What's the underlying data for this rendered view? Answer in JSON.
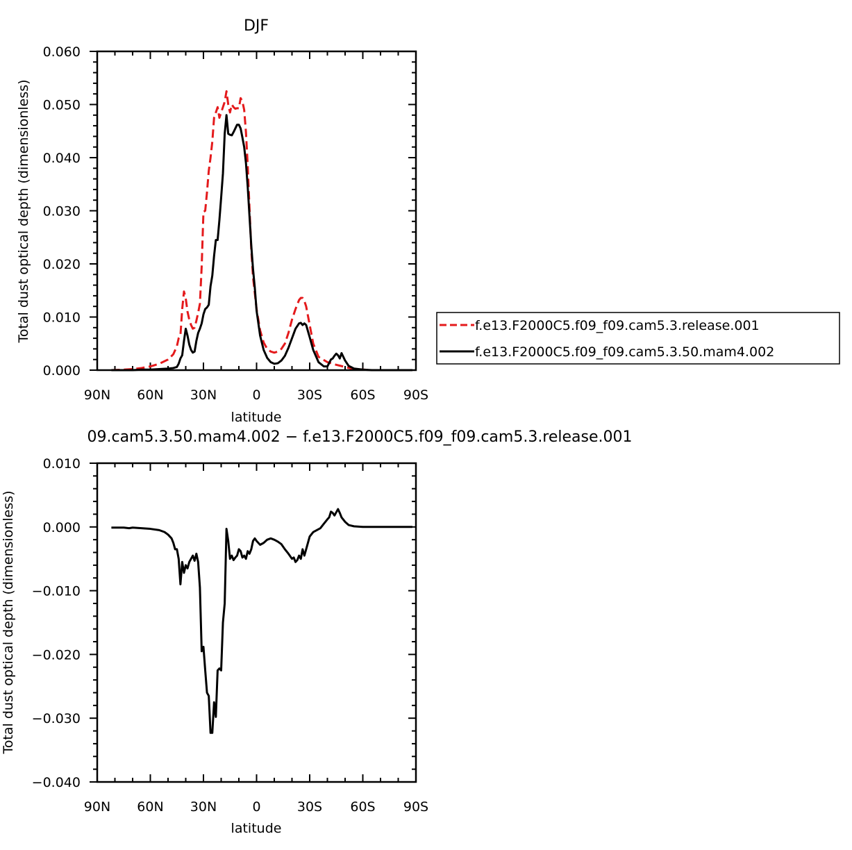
{
  "colors": {
    "series_red": "#e41a1c",
    "series_black": "#000000",
    "axis": "#000000",
    "background": "#ffffff"
  },
  "chart_data": [
    {
      "type": "line",
      "title": "DJF",
      "xlabel": "latitude",
      "ylabel": "Total dust optical depth (dimensionless)",
      "xlim": [
        90,
        -90
      ],
      "ylim": [
        0.0,
        0.06
      ],
      "x_tick_values": [
        90,
        60,
        30,
        0,
        -30,
        -60,
        -90
      ],
      "x_tick_labels": [
        "90N",
        "60N",
        "30N",
        "0",
        "30S",
        "60S",
        "90S"
      ],
      "y_tick_values": [
        0.0,
        0.01,
        0.02,
        0.03,
        0.04,
        0.05,
        0.06
      ],
      "y_tick_labels": [
        "0.000",
        "0.010",
        "0.020",
        "0.030",
        "0.040",
        "0.050",
        "0.060"
      ],
      "grid": false,
      "legend_position": "right",
      "series": [
        {
          "name": "f.e13.F2000C5.f09_f09.cam5.3.release.001",
          "style": "dashed",
          "color": "#e41a1c",
          "x": [
            82,
            75,
            70,
            65,
            60,
            55,
            50,
            47,
            45,
            44,
            43,
            42,
            41,
            40,
            39,
            38,
            37,
            36,
            35,
            34,
            33,
            32,
            31,
            30,
            29,
            28,
            27,
            26,
            25,
            24,
            23,
            22,
            21,
            20,
            19,
            18,
            17,
            16,
            15,
            14,
            13,
            12,
            11,
            10,
            9,
            8,
            7,
            6,
            5,
            4,
            3,
            2,
            1,
            0,
            -2,
            -4,
            -6,
            -8,
            -10,
            -12,
            -14,
            -16,
            -18,
            -20,
            -22,
            -24,
            -25,
            -26,
            -27,
            -28,
            -30,
            -32,
            -35,
            -40,
            -45,
            -50,
            -55,
            -60,
            -65,
            -70,
            -75,
            -80,
            -88
          ],
          "y": [
            0.0,
            0.0001,
            0.0002,
            0.0004,
            0.0007,
            0.0012,
            0.002,
            0.003,
            0.0045,
            0.006,
            0.0065,
            0.0115,
            0.0148,
            0.0135,
            0.011,
            0.0095,
            0.0085,
            0.0078,
            0.008,
            0.0093,
            0.0108,
            0.0125,
            0.0195,
            0.0298,
            0.03,
            0.0335,
            0.0375,
            0.04,
            0.043,
            0.0475,
            0.0485,
            0.0495,
            0.0475,
            0.0485,
            0.0495,
            0.0505,
            0.0525,
            0.05,
            0.0485,
            0.05,
            0.0495,
            0.0492,
            0.0493,
            0.0493,
            0.0512,
            0.0506,
            0.049,
            0.0448,
            0.0385,
            0.0305,
            0.0228,
            0.0175,
            0.0145,
            0.0115,
            0.0075,
            0.0052,
            0.004,
            0.0035,
            0.0033,
            0.0035,
            0.004,
            0.005,
            0.007,
            0.0095,
            0.0115,
            0.0132,
            0.0136,
            0.0136,
            0.013,
            0.012,
            0.0085,
            0.005,
            0.0025,
            0.0015,
            0.001,
            0.0006,
            0.0002,
            0.0001,
            0.0,
            0.0,
            0.0,
            0.0,
            0.0
          ]
        },
        {
          "name": "f.e13.F2000C5.f09_f09.cam5.3.50.mam4.002",
          "style": "solid",
          "color": "#000000",
          "x": [
            82,
            75,
            70,
            65,
            60,
            55,
            50,
            47,
            45,
            44,
            43,
            42,
            41,
            40,
            39,
            38,
            37,
            36,
            35,
            34,
            33,
            32,
            31,
            30,
            29,
            28,
            27,
            26,
            25,
            24,
            23,
            22,
            21,
            20,
            19,
            18,
            17,
            16,
            15,
            14,
            13,
            12,
            11,
            10,
            9,
            8,
            7,
            6,
            5,
            4,
            3,
            2,
            1,
            0,
            -2,
            -4,
            -6,
            -8,
            -10,
            -12,
            -14,
            -16,
            -18,
            -20,
            -22,
            -24,
            -25,
            -26,
            -27,
            -28,
            -30,
            -32,
            -35,
            -38,
            -40,
            -42,
            -43,
            -44,
            -45,
            -46,
            -47,
            -48,
            -50,
            -52,
            -55,
            -60,
            -65,
            -70,
            -75,
            -80,
            -88
          ],
          "y": [
            0.0,
            0.0,
            0.0,
            0.0001,
            0.0001,
            0.0002,
            0.0003,
            0.0004,
            0.0006,
            0.0012,
            0.0022,
            0.0028,
            0.0055,
            0.0078,
            0.0065,
            0.0048,
            0.0038,
            0.0033,
            0.0035,
            0.0055,
            0.007,
            0.0078,
            0.0088,
            0.0105,
            0.0115,
            0.0118,
            0.0123,
            0.0158,
            0.0178,
            0.0215,
            0.0245,
            0.0245,
            0.0282,
            0.0325,
            0.037,
            0.0445,
            0.048,
            0.0445,
            0.0443,
            0.0442,
            0.0448,
            0.0455,
            0.0462,
            0.0462,
            0.0455,
            0.0438,
            0.042,
            0.039,
            0.0345,
            0.029,
            0.0235,
            0.019,
            0.0155,
            0.0112,
            0.0065,
            0.0038,
            0.0023,
            0.0015,
            0.0012,
            0.0013,
            0.0018,
            0.0027,
            0.0042,
            0.006,
            0.0078,
            0.0088,
            0.0089,
            0.0085,
            0.0088,
            0.0085,
            0.0062,
            0.0038,
            0.0015,
            0.0007,
            0.0007,
            0.002,
            0.0022,
            0.0027,
            0.0031,
            0.0028,
            0.0022,
            0.0032,
            0.0018,
            0.0008,
            0.0003,
            0.0001,
            0.0,
            0.0,
            0.0,
            0.0,
            0.0
          ]
        }
      ]
    },
    {
      "type": "line",
      "title": "09.cam5.3.50.mam4.002 − f.e13.F2000C5.f09_f09.cam5.3.release.001",
      "xlabel": "latitude",
      "ylabel": "Total dust optical depth (dimensionless)",
      "xlim": [
        90,
        -90
      ],
      "ylim": [
        -0.04,
        0.01
      ],
      "x_tick_values": [
        90,
        60,
        30,
        0,
        -30,
        -60,
        -90
      ],
      "x_tick_labels": [
        "90N",
        "60N",
        "30N",
        "0",
        "30S",
        "60S",
        "90S"
      ],
      "y_tick_values": [
        -0.04,
        -0.03,
        -0.02,
        -0.01,
        0.0,
        0.01
      ],
      "y_tick_labels": [
        "−0.040",
        "−0.030",
        "−0.020",
        "−0.010",
        "0.000",
        "0.010"
      ],
      "grid": false,
      "series": [
        {
          "style": "solid",
          "color": "#000000",
          "x": [
            82,
            75,
            72,
            70,
            65,
            60,
            55,
            52,
            50,
            48,
            47,
            46,
            45,
            44,
            43,
            42,
            41,
            40,
            39,
            38,
            37,
            36,
            35,
            34,
            33,
            32,
            31,
            30,
            29,
            28,
            27,
            26,
            25,
            24,
            23,
            22,
            21,
            20,
            19,
            18,
            17,
            16,
            15,
            14,
            13,
            12,
            11,
            10,
            9,
            8,
            7,
            6,
            5,
            4,
            3,
            2,
            1,
            0,
            -2,
            -4,
            -6,
            -8,
            -10,
            -12,
            -14,
            -16,
            -18,
            -20,
            -21,
            -22,
            -23,
            -24,
            -25,
            -26,
            -27,
            -28,
            -30,
            -32,
            -34,
            -36,
            -38,
            -40,
            -41,
            -42,
            -43,
            -44,
            -45,
            -46,
            -47,
            -48,
            -50,
            -52,
            -55,
            -60,
            -65,
            -70,
            -75,
            -80,
            -88
          ],
          "y": [
            -0.0001,
            -0.0001,
            -0.0002,
            -0.0001,
            -0.0002,
            -0.0003,
            -0.0005,
            -0.0008,
            -0.0012,
            -0.0018,
            -0.0025,
            -0.0035,
            -0.0035,
            -0.005,
            -0.009,
            -0.0055,
            -0.0072,
            -0.006,
            -0.0065,
            -0.0055,
            -0.005,
            -0.0045,
            -0.0053,
            -0.0042,
            -0.0055,
            -0.0095,
            -0.0195,
            -0.0188,
            -0.0225,
            -0.026,
            -0.0265,
            -0.0323,
            -0.0323,
            -0.0275,
            -0.0298,
            -0.0225,
            -0.0222,
            -0.0225,
            -0.015,
            -0.012,
            -0.0003,
            -0.0022,
            -0.005,
            -0.0045,
            -0.0052,
            -0.0048,
            -0.0045,
            -0.0035,
            -0.0038,
            -0.0048,
            -0.0045,
            -0.005,
            -0.0038,
            -0.0042,
            -0.0035,
            -0.0022,
            -0.0018,
            -0.0022,
            -0.0028,
            -0.0025,
            -0.002,
            -0.0018,
            -0.002,
            -0.0023,
            -0.0027,
            -0.0035,
            -0.0042,
            -0.005,
            -0.0048,
            -0.0055,
            -0.0052,
            -0.0045,
            -0.005,
            -0.0035,
            -0.0045,
            -0.0035,
            -0.0015,
            -0.0008,
            -0.0005,
            -0.0002,
            0.0005,
            0.0012,
            0.0015,
            0.0024,
            0.0022,
            0.0018,
            0.0023,
            0.0028,
            0.0022,
            0.0015,
            0.0008,
            0.0003,
            0.0001,
            0.0,
            0.0,
            0.0,
            0.0,
            0.0,
            0.0
          ]
        }
      ]
    }
  ]
}
